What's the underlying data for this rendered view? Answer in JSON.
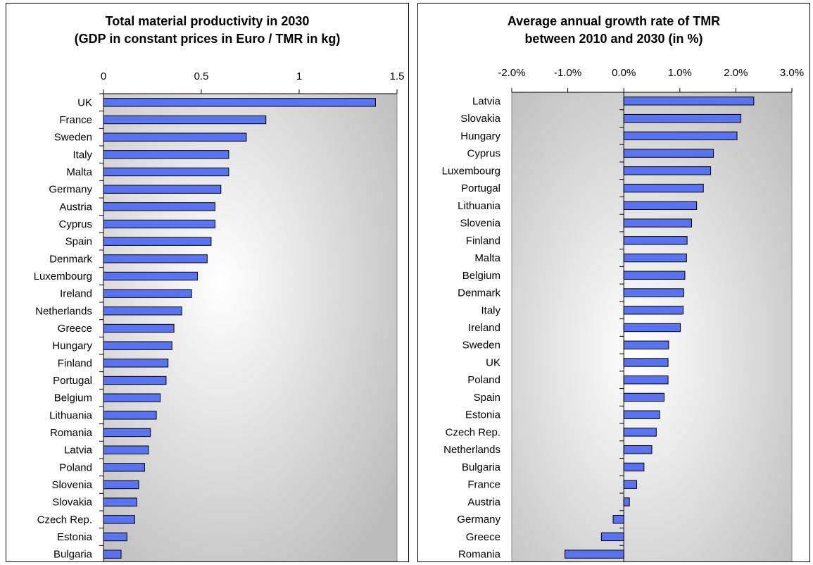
{
  "chart_data": [
    {
      "type": "bar",
      "orientation": "horizontal",
      "title": "Total material productivity in 2030",
      "subtitle": "(GDP in constant prices in Euro / TMR in kg)",
      "xlim": [
        0,
        1.5
      ],
      "x_ticks": [
        "0",
        "0.5",
        "1",
        "1.5"
      ],
      "x_tick_values": [
        0,
        0.5,
        1,
        1.5
      ],
      "categories": [
        "UK",
        "France",
        "Sweden",
        "Italy",
        "Malta",
        "Germany",
        "Austria",
        "Cyprus",
        "Spain",
        "Denmark",
        "Luxembourg",
        "Ireland",
        "Netherlands",
        "Greece",
        "Hungary",
        "Finland",
        "Portugal",
        "Belgium",
        "Lithuania",
        "Romania",
        "Latvia",
        "Poland",
        "Slovenia",
        "Slovakia",
        "Czech Rep.",
        "Estonia",
        "Bulgaria"
      ],
      "values": [
        1.39,
        0.83,
        0.73,
        0.64,
        0.64,
        0.6,
        0.57,
        0.57,
        0.55,
        0.53,
        0.48,
        0.45,
        0.4,
        0.36,
        0.35,
        0.33,
        0.32,
        0.29,
        0.27,
        0.24,
        0.23,
        0.21,
        0.18,
        0.17,
        0.16,
        0.12,
        0.09
      ],
      "bar_color": "#5a73f0",
      "grid": false
    },
    {
      "type": "bar",
      "orientation": "horizontal",
      "title": "Average annual growth rate of TMR",
      "subtitle": "between 2010 and 2030 (in %)",
      "xlim": [
        -2.0,
        3.0
      ],
      "x_ticks": [
        "-2.0%",
        "-1.0%",
        "0.0%",
        "1.0%",
        "2.0%",
        "3.0%"
      ],
      "x_tick_values": [
        -2,
        -1,
        0,
        1,
        2,
        3
      ],
      "categories": [
        "Latvia",
        "Slovakia",
        "Hungary",
        "Cyprus",
        "Luxembourg",
        "Portugal",
        "Lithuania",
        "Slovenia",
        "Finland",
        "Malta",
        "Belgium",
        "Denmark",
        "Italy",
        "Ireland",
        "Sweden",
        "UK",
        "Poland",
        "Spain",
        "Estonia",
        "Czech Rep.",
        "Netherlands",
        "Bulgaria",
        "France",
        "Austria",
        "Germany",
        "Greece",
        "Romania"
      ],
      "values": [
        2.32,
        2.09,
        2.02,
        1.6,
        1.55,
        1.42,
        1.3,
        1.21,
        1.13,
        1.12,
        1.09,
        1.07,
        1.06,
        1.01,
        0.8,
        0.79,
        0.79,
        0.72,
        0.64,
        0.58,
        0.5,
        0.36,
        0.23,
        0.1,
        -0.19,
        -0.4,
        -1.05
      ],
      "bar_color": "#5a73f0",
      "grid": false
    }
  ]
}
